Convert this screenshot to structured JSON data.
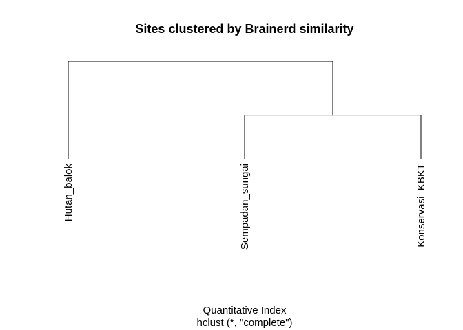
{
  "chart_data": {
    "type": "dendrogram",
    "title": "Sites clustered by Brainerd similarity",
    "xlabel": "Quantitative Index",
    "sublabel": "hclust (*, \"complete\")",
    "leaves": [
      "Hutan_balok",
      "Sempadan_sungai",
      "Konservasi_KBKT"
    ],
    "merges": [
      {
        "left": "Sempadan_sungai",
        "right": "Konservasi_KBKT",
        "height": 0.45
      },
      {
        "left": "Hutan_balok",
        "right": "cluster_1",
        "height": 1.0
      }
    ],
    "axes_shown": false
  }
}
